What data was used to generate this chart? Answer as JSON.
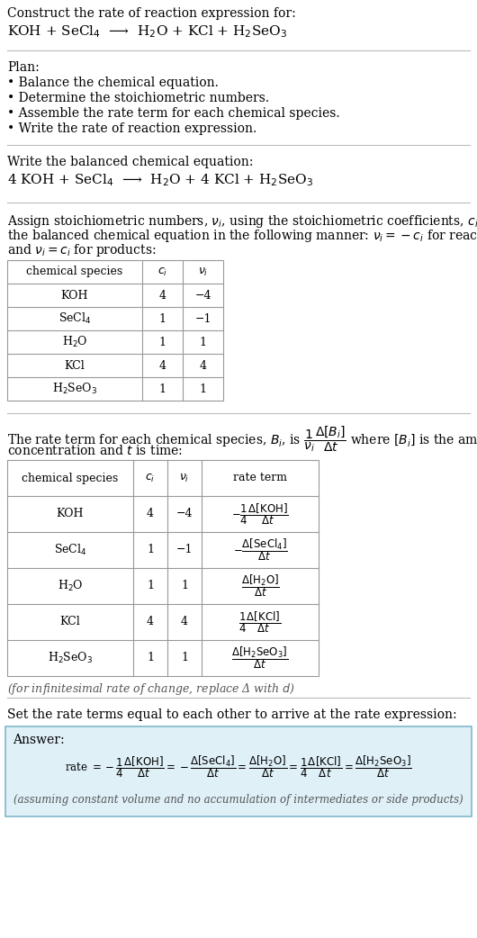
{
  "bg_color": "#ffffff",
  "text_color": "#000000",
  "gray_text": "#555555",
  "section_bg": "#dff0f7",
  "table_border_color": "#999999",
  "line_color": "#cccccc",
  "title_text": "Construct the rate of reaction expression for:",
  "reaction_unbalanced": "KOH + SeCl$_4$  ⟶  H$_2$O + KCl + H$_2$SeO$_3$",
  "plan_header": "Plan:",
  "plan_items": [
    "• Balance the chemical equation.",
    "• Determine the stoichiometric numbers.",
    "• Assemble the rate term for each chemical species.",
    "• Write the rate of reaction expression."
  ],
  "balanced_header": "Write the balanced chemical equation:",
  "reaction_balanced": "4 KOH + SeCl$_4$  ⟶  H$_2$O + 4 KCl + H$_2$SeO$_3$",
  "stoich_intro_line1": "Assign stoichiometric numbers, $\\nu_i$, using the stoichiometric coefficients, $c_i$, from",
  "stoich_intro_line2": "the balanced chemical equation in the following manner: $\\nu_i = -c_i$ for reactants",
  "stoich_intro_line3": "and $\\nu_i = c_i$ for products:",
  "table1_headers": [
    "chemical species",
    "$c_i$",
    "$\\nu_i$"
  ],
  "table1_rows": [
    [
      "KOH",
      "4",
      "−4"
    ],
    [
      "SeCl$_4$",
      "1",
      "−1"
    ],
    [
      "H$_2$O",
      "1",
      "1"
    ],
    [
      "KCl",
      "4",
      "4"
    ],
    [
      "H$_2$SeO$_3$",
      "1",
      "1"
    ]
  ],
  "rate_intro_line1": "The rate term for each chemical species, $B_i$, is $\\dfrac{1}{\\nu_i}\\dfrac{\\Delta[B_i]}{\\Delta t}$ where $[B_i]$ is the amount",
  "rate_intro_line2": "concentration and $t$ is time:",
  "table2_headers": [
    "chemical species",
    "$c_i$",
    "$\\nu_i$",
    "rate term"
  ],
  "table2_rows": [
    [
      "KOH",
      "4",
      "−4",
      "$-\\dfrac{1}{4}\\dfrac{\\Delta[\\mathrm{KOH}]}{\\Delta t}$"
    ],
    [
      "SeCl$_4$",
      "1",
      "−1",
      "$-\\dfrac{\\Delta[\\mathrm{SeCl_4}]}{\\Delta t}$"
    ],
    [
      "H$_2$O",
      "1",
      "1",
      "$\\dfrac{\\Delta[\\mathrm{H_2O}]}{\\Delta t}$"
    ],
    [
      "KCl",
      "4",
      "4",
      "$\\dfrac{1}{4}\\dfrac{\\Delta[\\mathrm{KCl}]}{\\Delta t}$"
    ],
    [
      "H$_2$SeO$_3$",
      "1",
      "1",
      "$\\dfrac{\\Delta[\\mathrm{H_2SeO_3}]}{\\Delta t}$"
    ]
  ],
  "infinitesimal_note": "(for infinitesimal rate of change, replace Δ with $d$)",
  "set_equal_text": "Set the rate terms equal to each other to arrive at the rate expression:",
  "answer_label": "Answer:",
  "rate_expression": "rate $= -\\dfrac{1}{4}\\dfrac{\\Delta[\\mathrm{KOH}]}{\\Delta t} = -\\dfrac{\\Delta[\\mathrm{SeCl_4}]}{\\Delta t} = \\dfrac{\\Delta[\\mathrm{H_2O}]}{\\Delta t} = \\dfrac{1}{4}\\dfrac{\\Delta[\\mathrm{KCl}]}{\\Delta t} = \\dfrac{\\Delta[\\mathrm{H_2SeO_3}]}{\\Delta t}$",
  "assuming_note": "(assuming constant volume and no accumulation of intermediates or side products)"
}
